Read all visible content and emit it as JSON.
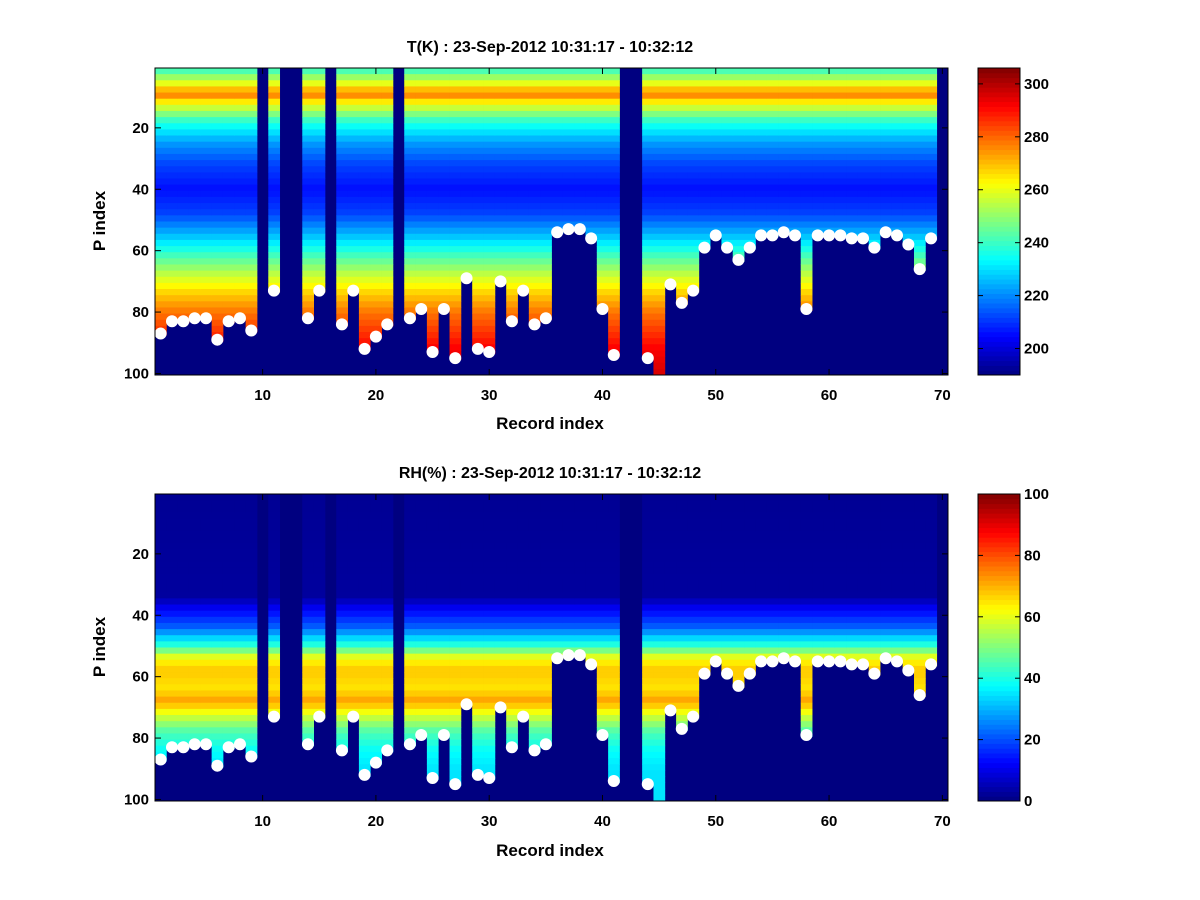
{
  "chart_data": [
    {
      "type": "heatmap",
      "title": "T(K) : 23-Sep-2012 10:31:17 - 10:32:12",
      "xlabel": "Record index",
      "ylabel": "P index",
      "xlim": [
        0.5,
        70.5
      ],
      "ylim": [
        100.5,
        0.5
      ],
      "y_reversed": true,
      "xticks": [
        10,
        20,
        30,
        40,
        50,
        60,
        70
      ],
      "yticks": [
        20,
        40,
        60,
        80,
        100
      ],
      "colormap": "jet",
      "colorbar": {
        "min": 190,
        "max": 306,
        "ticks": [
          200,
          220,
          240,
          260,
          280,
          300
        ]
      },
      "no_data_records": [
        10,
        12,
        13,
        16,
        22,
        42,
        43,
        70
      ],
      "profile": [
        {
          "p": 1,
          "value": 240
        },
        {
          "p": 6,
          "value": 262
        },
        {
          "p": 9,
          "value": 278
        },
        {
          "p": 12,
          "value": 262
        },
        {
          "p": 18,
          "value": 238
        },
        {
          "p": 25,
          "value": 222
        },
        {
          "p": 32,
          "value": 212
        },
        {
          "p": 40,
          "value": 206
        },
        {
          "p": 48,
          "value": 212
        },
        {
          "p": 55,
          "value": 226
        },
        {
          "p": 62,
          "value": 242
        },
        {
          "p": 68,
          "value": 256
        },
        {
          "p": 74,
          "value": 268
        },
        {
          "p": 80,
          "value": 278
        },
        {
          "p": 86,
          "value": 285
        },
        {
          "p": 92,
          "value": 292
        },
        {
          "p": 100,
          "value": 296
        }
      ],
      "marker_color": "#ffffff",
      "markers": [
        {
          "x": 1,
          "y": 87
        },
        {
          "x": 2,
          "y": 83
        },
        {
          "x": 3,
          "y": 83
        },
        {
          "x": 4,
          "y": 82
        },
        {
          "x": 5,
          "y": 82
        },
        {
          "x": 6,
          "y": 89
        },
        {
          "x": 7,
          "y": 83
        },
        {
          "x": 8,
          "y": 82
        },
        {
          "x": 9,
          "y": 86
        },
        {
          "x": 11,
          "y": 73
        },
        {
          "x": 14,
          "y": 82
        },
        {
          "x": 15,
          "y": 73
        },
        {
          "x": 17,
          "y": 84
        },
        {
          "x": 18,
          "y": 73
        },
        {
          "x": 19,
          "y": 92
        },
        {
          "x": 20,
          "y": 88
        },
        {
          "x": 21,
          "y": 84
        },
        {
          "x": 23,
          "y": 82
        },
        {
          "x": 24,
          "y": 79
        },
        {
          "x": 25,
          "y": 93
        },
        {
          "x": 26,
          "y": 79
        },
        {
          "x": 27,
          "y": 95
        },
        {
          "x": 28,
          "y": 69
        },
        {
          "x": 29,
          "y": 92
        },
        {
          "x": 30,
          "y": 93
        },
        {
          "x": 31,
          "y": 70
        },
        {
          "x": 32,
          "y": 83
        },
        {
          "x": 33,
          "y": 73
        },
        {
          "x": 34,
          "y": 84
        },
        {
          "x": 35,
          "y": 82
        },
        {
          "x": 36,
          "y": 54
        },
        {
          "x": 37,
          "y": 53
        },
        {
          "x": 38,
          "y": 53
        },
        {
          "x": 39,
          "y": 56
        },
        {
          "x": 40,
          "y": 79
        },
        {
          "x": 41,
          "y": 94
        },
        {
          "x": 44,
          "y": 95
        },
        {
          "x": 46,
          "y": 71
        },
        {
          "x": 47,
          "y": 77
        },
        {
          "x": 48,
          "y": 73
        },
        {
          "x": 49,
          "y": 59
        },
        {
          "x": 50,
          "y": 55
        },
        {
          "x": 51,
          "y": 59
        },
        {
          "x": 52,
          "y": 63
        },
        {
          "x": 53,
          "y": 59
        },
        {
          "x": 54,
          "y": 55
        },
        {
          "x": 55,
          "y": 55
        },
        {
          "x": 56,
          "y": 54
        },
        {
          "x": 57,
          "y": 55
        },
        {
          "x": 58,
          "y": 79
        },
        {
          "x": 59,
          "y": 55
        },
        {
          "x": 60,
          "y": 55
        },
        {
          "x": 61,
          "y": 55
        },
        {
          "x": 62,
          "y": 56
        },
        {
          "x": 63,
          "y": 56
        },
        {
          "x": 64,
          "y": 59
        },
        {
          "x": 65,
          "y": 54
        },
        {
          "x": 66,
          "y": 55
        },
        {
          "x": 67,
          "y": 58
        },
        {
          "x": 68,
          "y": 66
        },
        {
          "x": 69,
          "y": 56
        }
      ]
    },
    {
      "type": "heatmap",
      "title": "RH(%) : 23-Sep-2012 10:31:17 - 10:32:12",
      "xlabel": "Record index",
      "ylabel": "P index",
      "xlim": [
        0.5,
        70.5
      ],
      "ylim": [
        100.5,
        0.5
      ],
      "y_reversed": true,
      "xticks": [
        10,
        20,
        30,
        40,
        50,
        60,
        70
      ],
      "yticks": [
        20,
        40,
        60,
        80,
        100
      ],
      "colormap": "jet",
      "colorbar": {
        "min": 0,
        "max": 100,
        "ticks": [
          0,
          20,
          40,
          60,
          80,
          100
        ]
      },
      "no_data_records": [
        10,
        12,
        13,
        16,
        22,
        42,
        43,
        70
      ],
      "profile": [
        {
          "p": 1,
          "value": 2
        },
        {
          "p": 34,
          "value": 3
        },
        {
          "p": 38,
          "value": 12
        },
        {
          "p": 44,
          "value": 22
        },
        {
          "p": 50,
          "value": 42
        },
        {
          "p": 54,
          "value": 62
        },
        {
          "p": 58,
          "value": 68
        },
        {
          "p": 64,
          "value": 65
        },
        {
          "p": 68,
          "value": 72
        },
        {
          "p": 72,
          "value": 60
        },
        {
          "p": 78,
          "value": 45
        },
        {
          "p": 84,
          "value": 38
        },
        {
          "p": 90,
          "value": 35
        },
        {
          "p": 100,
          "value": 35
        }
      ],
      "marker_color": "#ffffff",
      "markers": [
        {
          "x": 1,
          "y": 87
        },
        {
          "x": 2,
          "y": 83
        },
        {
          "x": 3,
          "y": 83
        },
        {
          "x": 4,
          "y": 82
        },
        {
          "x": 5,
          "y": 82
        },
        {
          "x": 6,
          "y": 89
        },
        {
          "x": 7,
          "y": 83
        },
        {
          "x": 8,
          "y": 82
        },
        {
          "x": 9,
          "y": 86
        },
        {
          "x": 11,
          "y": 73
        },
        {
          "x": 14,
          "y": 82
        },
        {
          "x": 15,
          "y": 73
        },
        {
          "x": 17,
          "y": 84
        },
        {
          "x": 18,
          "y": 73
        },
        {
          "x": 19,
          "y": 92
        },
        {
          "x": 20,
          "y": 88
        },
        {
          "x": 21,
          "y": 84
        },
        {
          "x": 23,
          "y": 82
        },
        {
          "x": 24,
          "y": 79
        },
        {
          "x": 25,
          "y": 93
        },
        {
          "x": 26,
          "y": 79
        },
        {
          "x": 27,
          "y": 95
        },
        {
          "x": 28,
          "y": 69
        },
        {
          "x": 29,
          "y": 92
        },
        {
          "x": 30,
          "y": 93
        },
        {
          "x": 31,
          "y": 70
        },
        {
          "x": 32,
          "y": 83
        },
        {
          "x": 33,
          "y": 73
        },
        {
          "x": 34,
          "y": 84
        },
        {
          "x": 35,
          "y": 82
        },
        {
          "x": 36,
          "y": 54
        },
        {
          "x": 37,
          "y": 53
        },
        {
          "x": 38,
          "y": 53
        },
        {
          "x": 39,
          "y": 56
        },
        {
          "x": 40,
          "y": 79
        },
        {
          "x": 41,
          "y": 94
        },
        {
          "x": 44,
          "y": 95
        },
        {
          "x": 46,
          "y": 71
        },
        {
          "x": 47,
          "y": 77
        },
        {
          "x": 48,
          "y": 73
        },
        {
          "x": 49,
          "y": 59
        },
        {
          "x": 50,
          "y": 55
        },
        {
          "x": 51,
          "y": 59
        },
        {
          "x": 52,
          "y": 63
        },
        {
          "x": 53,
          "y": 59
        },
        {
          "x": 54,
          "y": 55
        },
        {
          "x": 55,
          "y": 55
        },
        {
          "x": 56,
          "y": 54
        },
        {
          "x": 57,
          "y": 55
        },
        {
          "x": 58,
          "y": 79
        },
        {
          "x": 59,
          "y": 55
        },
        {
          "x": 60,
          "y": 55
        },
        {
          "x": 61,
          "y": 55
        },
        {
          "x": 62,
          "y": 56
        },
        {
          "x": 63,
          "y": 56
        },
        {
          "x": 64,
          "y": 59
        },
        {
          "x": 65,
          "y": 54
        },
        {
          "x": 66,
          "y": 55
        },
        {
          "x": 67,
          "y": 58
        },
        {
          "x": 68,
          "y": 66
        },
        {
          "x": 69,
          "y": 56
        }
      ]
    }
  ]
}
